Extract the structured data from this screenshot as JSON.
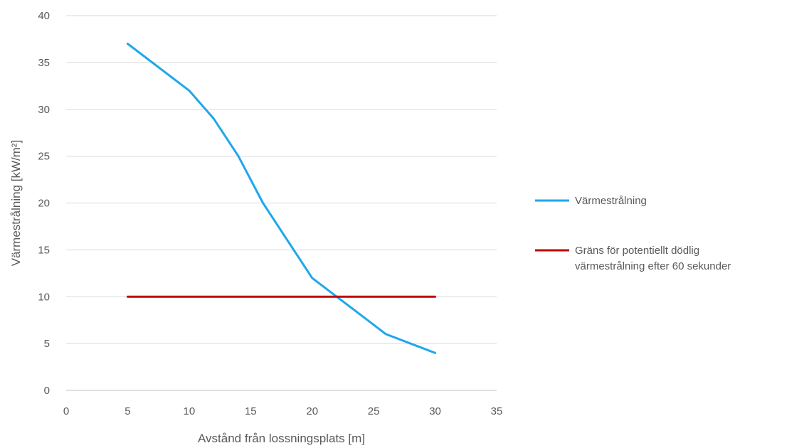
{
  "chart_data": {
    "type": "line",
    "title": "",
    "xlabel": "Avstånd från lossningsplats [m]",
    "ylabel": "Värmestrålning [kW/m²]",
    "xlim": [
      0,
      35
    ],
    "ylim": [
      0,
      40
    ],
    "xticks": [
      "0",
      "5",
      "10",
      "15",
      "20",
      "25",
      "30",
      "35"
    ],
    "yticks": [
      "0",
      "5",
      "10",
      "15",
      "20",
      "25",
      "30",
      "35",
      "40"
    ],
    "grid": "horizontal",
    "legend_position": "right",
    "series": [
      {
        "name": "Värmestrålning",
        "color": "#1ea7ec",
        "points": [
          [
            5,
            37
          ],
          [
            10,
            32
          ],
          [
            12,
            29
          ],
          [
            14,
            25
          ],
          [
            16,
            20
          ],
          [
            18,
            16
          ],
          [
            20,
            12
          ],
          [
            22,
            10
          ],
          [
            24,
            8
          ],
          [
            26,
            6
          ],
          [
            30,
            4
          ]
        ]
      },
      {
        "name": "Gräns för potentiellt dödlig värmestrålning efter 60 sekunder",
        "name_lines": [
          "Gräns för potentiellt dödlig",
          "värmestrålning efter 60 sekunder"
        ],
        "color": "#c00000",
        "points": [
          [
            5,
            10
          ],
          [
            30,
            10
          ]
        ]
      }
    ]
  }
}
